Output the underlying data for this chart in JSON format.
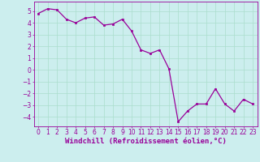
{
  "x": [
    0,
    1,
    2,
    3,
    4,
    5,
    6,
    7,
    8,
    9,
    10,
    11,
    12,
    13,
    14,
    15,
    16,
    17,
    18,
    19,
    20,
    21,
    22,
    23
  ],
  "y": [
    4.8,
    5.2,
    5.1,
    4.3,
    4.0,
    4.4,
    4.5,
    3.8,
    3.9,
    4.3,
    3.3,
    1.7,
    1.4,
    1.7,
    0.1,
    -4.4,
    -3.5,
    -2.9,
    -2.9,
    -1.6,
    -2.9,
    -3.5,
    -2.5,
    -2.9
  ],
  "line_color": "#990099",
  "marker": "s",
  "marker_size": 1.8,
  "line_width": 0.9,
  "xlabel": "Windchill (Refroidissement éolien,°C)",
  "xlabel_fontsize": 6.5,
  "ylabel_ticks": [
    -4,
    -3,
    -2,
    -1,
    0,
    1,
    2,
    3,
    4,
    5
  ],
  "xtick_labels": [
    "0",
    "1",
    "2",
    "3",
    "4",
    "5",
    "6",
    "7",
    "8",
    "9",
    "10",
    "11",
    "12",
    "13",
    "14",
    "15",
    "16",
    "17",
    "18",
    "19",
    "20",
    "21",
    "22",
    "23"
  ],
  "ylim": [
    -4.8,
    5.8
  ],
  "xlim": [
    -0.5,
    23.5
  ],
  "grid_color": "#aaddcc",
  "background_color": "#cceeee",
  "tick_fontsize": 5.5,
  "tick_color": "#990099",
  "label_color": "#990099"
}
